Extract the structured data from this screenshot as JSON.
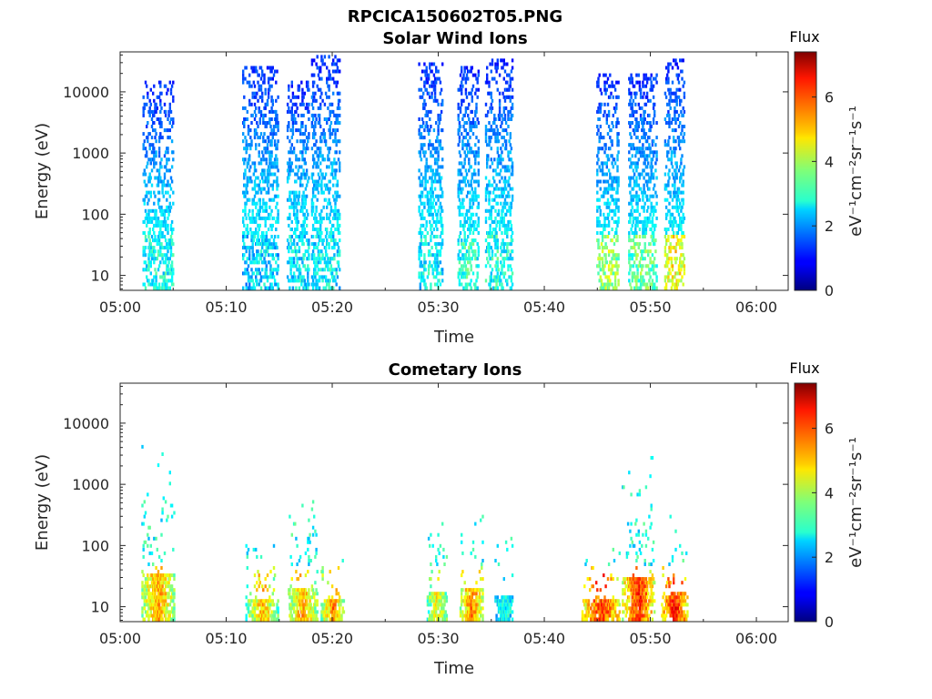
{
  "figure_title": "RPCICA150602T05.PNG",
  "colorbar": {
    "title": "Flux",
    "label": "eV⁻¹cm⁻²sr⁻¹s⁻¹",
    "range": [
      0,
      7.4
    ],
    "ticks": [
      "0",
      "2",
      "4",
      "6"
    ],
    "colormap": "jet"
  },
  "chart_data": [
    {
      "type": "heatmap",
      "title": "Solar Wind Ions",
      "xlabel": "Time",
      "ylabel": "Energy (eV)",
      "xlim": [
        "05:00",
        "06:03"
      ],
      "ylim": [
        5.7,
        45000
      ],
      "yscale": "log",
      "xticks": [
        "05:00",
        "05:10",
        "05:20",
        "05:30",
        "05:40",
        "05:50",
        "06:00"
      ],
      "yticks": [
        "10",
        "100",
        "1000",
        "10000"
      ],
      "bursts": [
        {
          "start": "05:02:06",
          "end": "05:05:00",
          "peak_flux": 3.6,
          "low_energy_flux": 3.5,
          "max_energy": 15000
        },
        {
          "start": "05:11:30",
          "end": "05:14:54",
          "peak_flux": 3.3,
          "low_energy_flux": 3.0,
          "max_energy": 25000
        },
        {
          "start": "05:15:42",
          "end": "05:17:48",
          "peak_flux": 3.4,
          "low_energy_flux": 3.2,
          "max_energy": 15000
        },
        {
          "start": "05:18:00",
          "end": "05:20:42",
          "peak_flux": 3.5,
          "low_energy_flux": 3.3,
          "max_energy": 38000
        },
        {
          "start": "05:28:06",
          "end": "05:30:24",
          "peak_flux": 3.5,
          "low_energy_flux": 3.3,
          "max_energy": 28000
        },
        {
          "start": "05:31:48",
          "end": "05:33:48",
          "peak_flux": 3.8,
          "low_energy_flux": 3.6,
          "max_energy": 25000
        },
        {
          "start": "05:34:24",
          "end": "05:37:00",
          "peak_flux": 3.7,
          "low_energy_flux": 3.5,
          "max_energy": 32000
        },
        {
          "start": "05:44:54",
          "end": "05:47:00",
          "peak_flux": 4.7,
          "low_energy_flux": 4.4,
          "max_energy": 20000
        },
        {
          "start": "05:47:54",
          "end": "05:50:36",
          "peak_flux": 4.3,
          "low_energy_flux": 4.0,
          "max_energy": 20000
        },
        {
          "start": "05:51:18",
          "end": "05:53:12",
          "peak_flux": 5.4,
          "low_energy_flux": 5.0,
          "max_energy": 32000
        }
      ]
    },
    {
      "type": "heatmap",
      "title": "Cometary Ions",
      "xlabel": "Time",
      "ylabel": "Energy (eV)",
      "xlim": [
        "05:00",
        "06:03"
      ],
      "ylim": [
        5.7,
        45000
      ],
      "yscale": "log",
      "xticks": [
        "05:00",
        "05:10",
        "05:20",
        "05:30",
        "05:40",
        "05:50",
        "06:00"
      ],
      "yticks": [
        "10",
        "100",
        "1000",
        "10000"
      ],
      "bursts": [
        {
          "start": "05:02:00",
          "end": "05:05:06",
          "peak_flux": 6.0,
          "low_energy_flux": 4.5,
          "max_energy": 5200
        },
        {
          "start": "05:11:48",
          "end": "05:14:54",
          "peak_flux": 5.8,
          "low_energy_flux": 4.0,
          "max_energy": 150
        },
        {
          "start": "05:15:48",
          "end": "05:18:36",
          "peak_flux": 6.0,
          "low_energy_flux": 4.3,
          "max_energy": 700
        },
        {
          "start": "05:18:54",
          "end": "05:21:06",
          "peak_flux": 6.2,
          "low_energy_flux": 4.4,
          "max_energy": 110
        },
        {
          "start": "05:28:54",
          "end": "05:30:48",
          "peak_flux": 5.4,
          "low_energy_flux": 4.0,
          "max_energy": 300
        },
        {
          "start": "05:32:00",
          "end": "05:34:12",
          "peak_flux": 6.3,
          "low_energy_flux": 4.7,
          "max_energy": 550
        },
        {
          "start": "05:35:18",
          "end": "05:37:00",
          "peak_flux": 3.6,
          "low_energy_flux": 3.2,
          "max_energy": 210
        },
        {
          "start": "05:43:30",
          "end": "05:47:06",
          "peak_flux": 6.8,
          "low_energy_flux": 5.2,
          "max_energy": 160
        },
        {
          "start": "05:47:18",
          "end": "05:50:24",
          "peak_flux": 6.9,
          "low_energy_flux": 5.0,
          "max_energy": 4000
        },
        {
          "start": "05:51:00",
          "end": "05:53:30",
          "peak_flux": 7.0,
          "low_energy_flux": 5.3,
          "max_energy": 400
        }
      ]
    }
  ]
}
